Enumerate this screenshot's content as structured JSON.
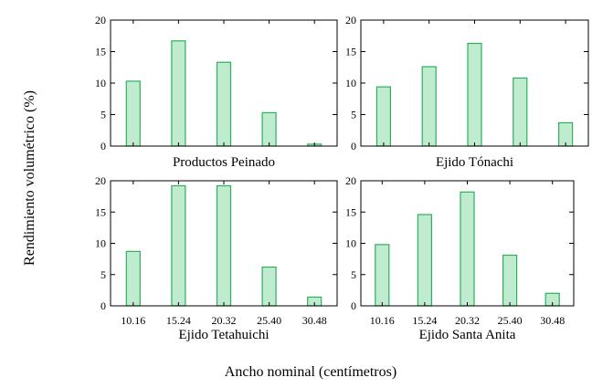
{
  "chart_data": {
    "type": "bar",
    "ylabel": "Rendimiento volumétrico (%)",
    "xlabel": "Ancho nominal (centímetros)",
    "categories": [
      "10.16",
      "15.24",
      "20.32",
      "25.40",
      "30.48"
    ],
    "ylim": [
      0,
      20
    ],
    "yticks": [
      "0",
      "5",
      "10",
      "15",
      "20"
    ],
    "colors": {
      "bar_fill": "#bfeccf",
      "bar_stroke": "#2fae5c"
    },
    "panels": [
      {
        "title": "Productos Peinado",
        "values": [
          10.3,
          16.7,
          13.3,
          5.3,
          0.3
        ],
        "show_xticklabels": false
      },
      {
        "title": "Ejido Tónachi",
        "values": [
          9.4,
          12.6,
          16.3,
          10.8,
          3.7
        ],
        "show_xticklabels": false
      },
      {
        "title": "Ejido Tetahuichi",
        "values": [
          8.7,
          19.2,
          19.2,
          6.2,
          1.4
        ],
        "show_xticklabels": true
      },
      {
        "title": "Ejido Santa Anita",
        "values": [
          9.8,
          14.6,
          18.2,
          8.1,
          2.0
        ],
        "show_xticklabels": true
      }
    ]
  }
}
